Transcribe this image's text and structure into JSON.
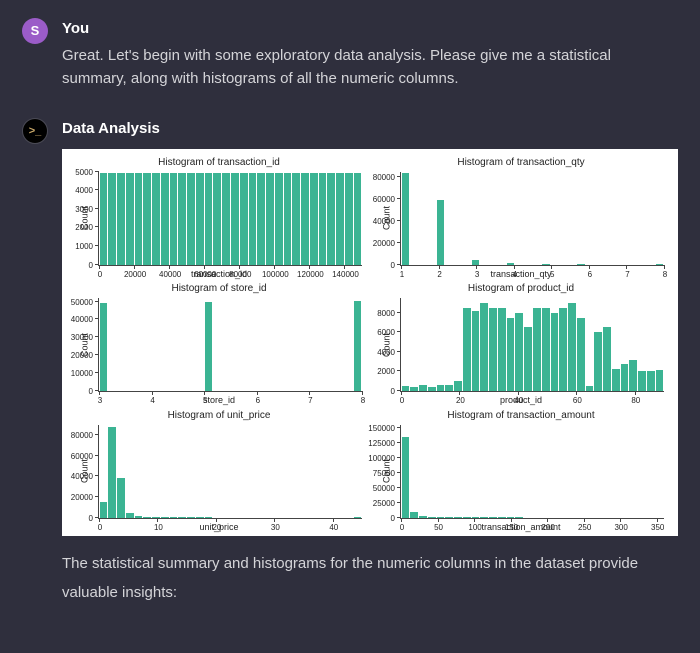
{
  "user_msg": {
    "avatar_letter": "S",
    "author": "You",
    "text": "Great. Let's begin with some exploratory data analysis. Please give me a statistical summary, along with histograms of all the numeric columns."
  },
  "assistant_msg": {
    "avatar_glyph": ">_",
    "author": "Data Analysis",
    "summary_text": "The statistical summary and histograms for the numeric columns in the dataset provide valuable insights:"
  },
  "colors": {
    "page_bg": "#2f2f3d",
    "panel_bg": "#ffffff",
    "bar_fill": "#3bb493",
    "axis_color": "#444444",
    "text_dark": "#222222",
    "text_light": "#d4d4d8",
    "user_avatar_bg": "#9b5cc8",
    "assistant_avatar_bg": "#000000",
    "assistant_avatar_fg": "#c9a86a"
  },
  "global_style": {
    "title_fontsize_pt": 10,
    "label_fontsize_pt": 9,
    "tick_fontsize_pt": 8,
    "ylabel_text": "Count",
    "grid": false
  },
  "subplots": [
    {
      "title": "Histogram of transaction_id",
      "xlabel": "transaction_id",
      "xlim": [
        0,
        150000
      ],
      "xticks": [
        0,
        20000,
        40000,
        60000,
        80000,
        100000,
        120000,
        140000
      ],
      "ylim": [
        0,
        5000
      ],
      "yticks": [
        0,
        1000,
        2000,
        3000,
        4000,
        5000
      ],
      "bins": 30,
      "heights": [
        4900,
        4900,
        4900,
        4900,
        4900,
        4900,
        4900,
        4900,
        4900,
        4900,
        4900,
        4900,
        4900,
        4900,
        4900,
        4900,
        4900,
        4900,
        4900,
        4900,
        4900,
        4900,
        4900,
        4900,
        4900,
        4900,
        4900,
        4900,
        4900,
        4900
      ]
    },
    {
      "title": "Histogram of transaction_qty",
      "xlabel": "transaction_qty",
      "xlim": [
        1,
        8
      ],
      "xticks": [
        1,
        2,
        3,
        4,
        5,
        6,
        7,
        8
      ],
      "ylim": [
        0,
        85000
      ],
      "yticks": [
        0,
        20000,
        40000,
        60000,
        80000
      ],
      "bins": 30,
      "heights": [
        84000,
        0,
        0,
        0,
        59000,
        0,
        0,
        0,
        4000,
        0,
        0,
        0,
        1500,
        0,
        0,
        0,
        600,
        0,
        0,
        0,
        400,
        0,
        0,
        0,
        0,
        0,
        0,
        0,
        0,
        300
      ]
    },
    {
      "title": "Histogram of store_id",
      "xlabel": "store_id",
      "xlim": [
        3,
        8
      ],
      "xticks": [
        3,
        4,
        5,
        6,
        7,
        8
      ],
      "ylim": [
        0,
        52000
      ],
      "yticks": [
        0,
        10000,
        20000,
        30000,
        40000,
        50000
      ],
      "bins": 30,
      "heights": [
        49000,
        0,
        0,
        0,
        0,
        0,
        0,
        0,
        0,
        0,
        0,
        0,
        49500,
        0,
        0,
        0,
        0,
        0,
        0,
        0,
        0,
        0,
        0,
        0,
        0,
        0,
        0,
        0,
        0,
        50500
      ]
    },
    {
      "title": "Histogram of product_id",
      "xlabel": "product_id",
      "xlim": [
        0,
        90
      ],
      "xticks": [
        0,
        20,
        40,
        60,
        80
      ],
      "ylim": [
        0,
        9500
      ],
      "yticks": [
        0,
        2000,
        4000,
        6000,
        8000
      ],
      "bins": 30,
      "heights": [
        500,
        400,
        600,
        400,
        600,
        600,
        1000,
        8500,
        8200,
        9000,
        8500,
        8500,
        7500,
        8000,
        6500,
        8500,
        8500,
        8000,
        8500,
        9000,
        7500,
        500,
        6000,
        6500,
        2200,
        2800,
        3200,
        2000,
        2000,
        2100
      ]
    },
    {
      "title": "Histogram of unit_price",
      "xlabel": "unit_price",
      "xlim": [
        0,
        45
      ],
      "xticks": [
        0,
        10,
        20,
        30,
        40
      ],
      "ylim": [
        0,
        90000
      ],
      "yticks": [
        0,
        20000,
        40000,
        60000,
        80000
      ],
      "bins": 30,
      "heights": [
        15000,
        88000,
        38000,
        4000,
        1500,
        800,
        500,
        300,
        200,
        100,
        100,
        50,
        50,
        0,
        0,
        0,
        0,
        0,
        0,
        0,
        0,
        0,
        0,
        0,
        0,
        0,
        0,
        0,
        0,
        200
      ]
    },
    {
      "title": "Histogram of transaction_amount",
      "xlabel": "transaction_amount",
      "xlim": [
        0,
        360
      ],
      "xticks": [
        0,
        50,
        100,
        150,
        200,
        250,
        300,
        350
      ],
      "ylim": [
        0,
        155000
      ],
      "yticks": [
        0,
        25000,
        50000,
        75000,
        100000,
        125000,
        150000
      ],
      "bins": 30,
      "heights": [
        135000,
        10000,
        2000,
        1000,
        500,
        300,
        200,
        150,
        100,
        80,
        60,
        50,
        40,
        30,
        20,
        20,
        10,
        10,
        10,
        10,
        5,
        5,
        5,
        5,
        5,
        5,
        5,
        5,
        5,
        20
      ]
    }
  ]
}
